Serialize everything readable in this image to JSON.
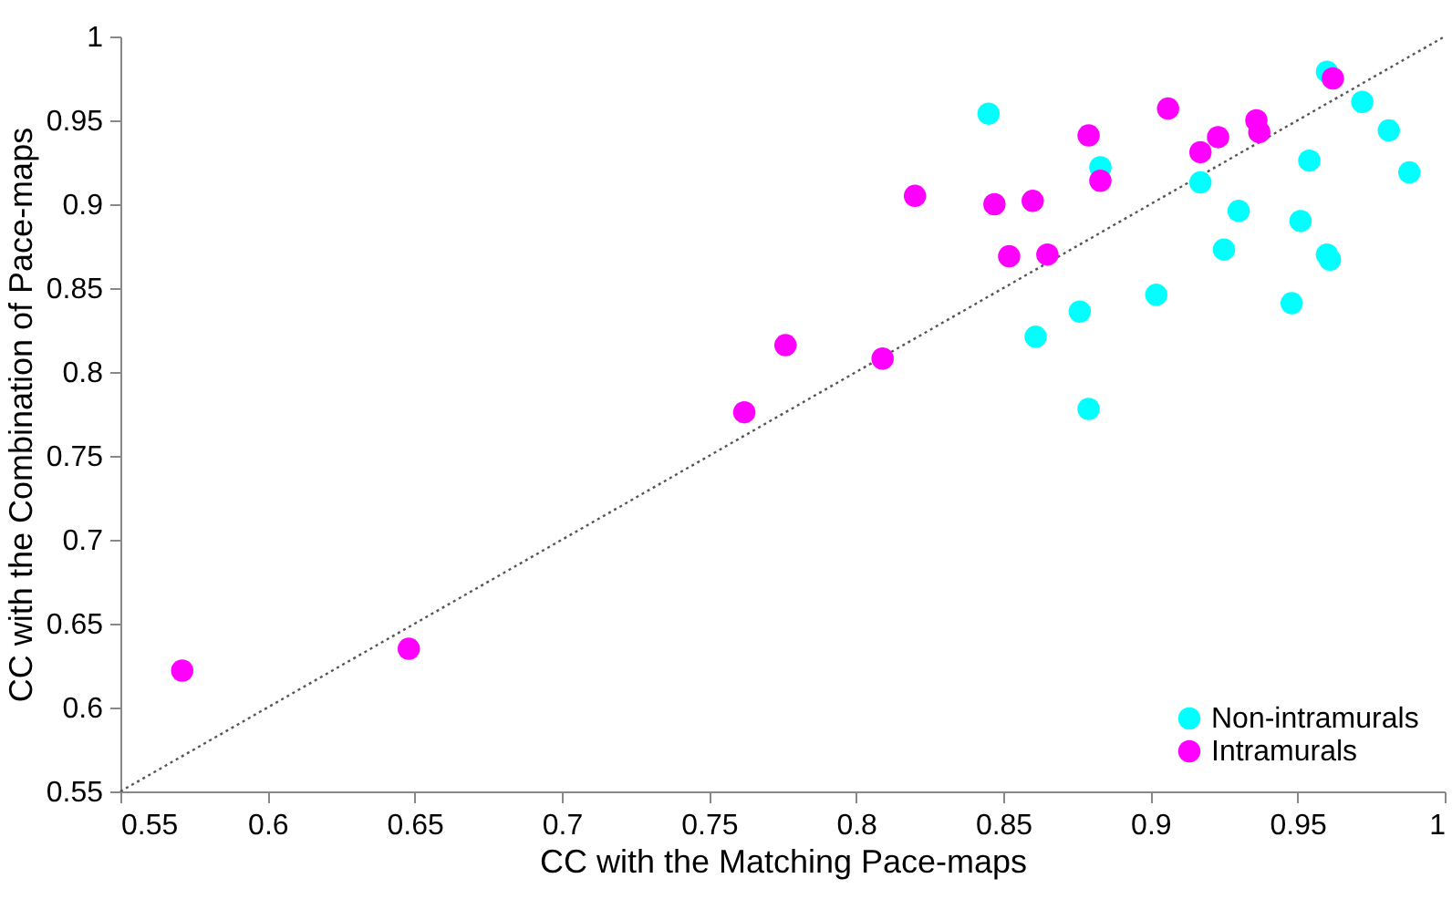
{
  "chart_data": {
    "type": "scatter",
    "xlabel": "CC with the Matching Pace-maps",
    "ylabel": "CC with the Combination of Pace-maps",
    "xlim": [
      0.55,
      1
    ],
    "ylim": [
      0.55,
      1
    ],
    "xticks": [
      0.55,
      0.6,
      0.65,
      0.7,
      0.75,
      0.8,
      0.85,
      0.9,
      0.95,
      1
    ],
    "yticks": [
      0.55,
      0.6,
      0.65,
      0.7,
      0.75,
      0.8,
      0.85,
      0.9,
      0.95,
      1
    ],
    "grid": false,
    "legend": "bottom right",
    "marker": "circle",
    "series": [
      {
        "name": "Non-intramurals",
        "color": "#00ffff",
        "x": [
          0.845,
          0.883,
          0.96,
          0.972,
          0.981,
          0.988,
          0.917,
          0.93,
          0.954,
          0.925,
          0.951,
          0.96,
          0.961,
          0.902,
          0.948,
          0.876,
          0.861,
          0.879
        ],
        "values": [
          0.954,
          0.922,
          0.979,
          0.961,
          0.944,
          0.919,
          0.913,
          0.896,
          0.926,
          0.873,
          0.89,
          0.87,
          0.867,
          0.846,
          0.841,
          0.836,
          0.821,
          0.778
        ]
      },
      {
        "name": "Intramurals",
        "color": "#ff00ff",
        "x": [
          0.571,
          0.648,
          0.762,
          0.776,
          0.809,
          0.82,
          0.847,
          0.86,
          0.852,
          0.865,
          0.879,
          0.883,
          0.906,
          0.917,
          0.923,
          0.936,
          0.937,
          0.962
        ],
        "values": [
          0.622,
          0.635,
          0.776,
          0.816,
          0.808,
          0.905,
          0.9,
          0.902,
          0.869,
          0.87,
          0.941,
          0.914,
          0.957,
          0.931,
          0.94,
          0.95,
          0.943,
          0.975
        ]
      },
      {
        "type": "line",
        "color": "#555555",
        "line_style": "dotted",
        "marker": "none",
        "x": [
          0.55,
          1
        ],
        "values": [
          0.55,
          1
        ]
      }
    ]
  }
}
